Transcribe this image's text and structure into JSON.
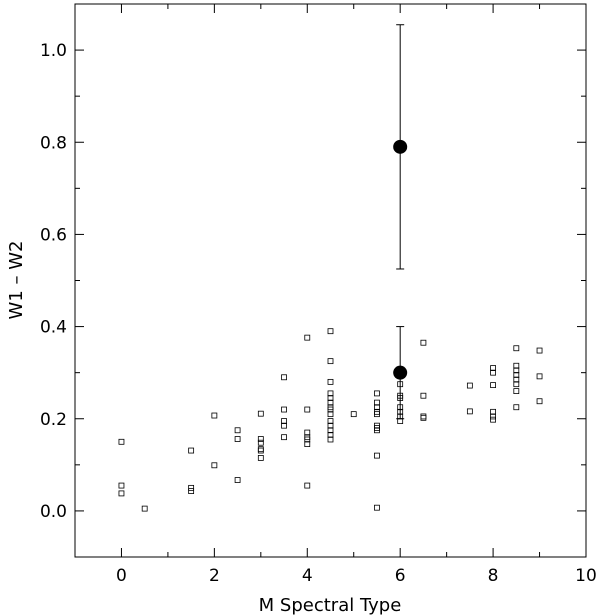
{
  "chart_data": {
    "type": "scatter",
    "title": "",
    "xlabel": "M Spectral Type",
    "ylabel": "W1 – W2",
    "xlim": [
      -1,
      10
    ],
    "ylim": [
      -0.1,
      1.1
    ],
    "grid": false,
    "x_ticks": [
      0,
      2,
      4,
      6,
      8,
      10
    ],
    "x_tick_labels": [
      "0",
      "2",
      "4",
      "6",
      "8",
      "10"
    ],
    "y_ticks": [
      0.0,
      0.2,
      0.4,
      0.6,
      0.8,
      1.0
    ],
    "y_tick_labels": [
      "0.0",
      "0.2",
      "0.4",
      "0.6",
      "0.8",
      "1.0"
    ],
    "series": [
      {
        "marker": "open-square",
        "color": "#000000",
        "points": [
          [
            0,
            0.15
          ],
          [
            0,
            0.055
          ],
          [
            0,
            0.038
          ],
          [
            0.5,
            0.005
          ],
          [
            1.5,
            0.131
          ],
          [
            1.5,
            0.05
          ],
          [
            1.5,
            0.043
          ],
          [
            2,
            0.207
          ],
          [
            2,
            0.099
          ],
          [
            2.5,
            0.175
          ],
          [
            2.5,
            0.156
          ],
          [
            2.5,
            0.067
          ],
          [
            3,
            0.211
          ],
          [
            3,
            0.156
          ],
          [
            3,
            0.148
          ],
          [
            3,
            0.134
          ],
          [
            3,
            0.131
          ],
          [
            3,
            0.115
          ],
          [
            3.5,
            0.29
          ],
          [
            3.5,
            0.22
          ],
          [
            3.5,
            0.195
          ],
          [
            3.5,
            0.185
          ],
          [
            3.5,
            0.16
          ],
          [
            4,
            0.376
          ],
          [
            4,
            0.22
          ],
          [
            4,
            0.17
          ],
          [
            4,
            0.16
          ],
          [
            4,
            0.155
          ],
          [
            4,
            0.145
          ],
          [
            4,
            0.055
          ],
          [
            4.5,
            0.39
          ],
          [
            4.5,
            0.325
          ],
          [
            4.5,
            0.28
          ],
          [
            4.5,
            0.255
          ],
          [
            4.5,
            0.245
          ],
          [
            4.5,
            0.235
          ],
          [
            4.5,
            0.225
          ],
          [
            4.5,
            0.22
          ],
          [
            4.5,
            0.21
          ],
          [
            4.5,
            0.195
          ],
          [
            4.5,
            0.185
          ],
          [
            4.5,
            0.175
          ],
          [
            4.5,
            0.165
          ],
          [
            4.5,
            0.155
          ],
          [
            5,
            0.21
          ],
          [
            5.5,
            0.255
          ],
          [
            5.5,
            0.235
          ],
          [
            5.5,
            0.225
          ],
          [
            5.5,
            0.215
          ],
          [
            5.5,
            0.21
          ],
          [
            5.5,
            0.185
          ],
          [
            5.5,
            0.18
          ],
          [
            5.5,
            0.175
          ],
          [
            5.5,
            0.12
          ],
          [
            5.5,
            0.007
          ],
          [
            6,
            0.275
          ],
          [
            6,
            0.25
          ],
          [
            6,
            0.245
          ],
          [
            6,
            0.225
          ],
          [
            6,
            0.215
          ],
          [
            6,
            0.205
          ],
          [
            6,
            0.195
          ],
          [
            6.5,
            0.365
          ],
          [
            6.5,
            0.25
          ],
          [
            6.5,
            0.205
          ],
          [
            6.5,
            0.202
          ],
          [
            7.5,
            0.272
          ],
          [
            7.5,
            0.216
          ],
          [
            8,
            0.31
          ],
          [
            8,
            0.3
          ],
          [
            8,
            0.273
          ],
          [
            8,
            0.215
          ],
          [
            8,
            0.205
          ],
          [
            8,
            0.198
          ],
          [
            8.5,
            0.353
          ],
          [
            8.5,
            0.315
          ],
          [
            8.5,
            0.305
          ],
          [
            8.5,
            0.295
          ],
          [
            8.5,
            0.285
          ],
          [
            8.5,
            0.275
          ],
          [
            8.5,
            0.26
          ],
          [
            8.5,
            0.225
          ],
          [
            9,
            0.348
          ],
          [
            9,
            0.292
          ],
          [
            9,
            0.238
          ]
        ]
      },
      {
        "marker": "filled-circle",
        "color": "#000000",
        "points": [
          {
            "x": 6,
            "y": 0.79,
            "err_low": 0.525,
            "err_high": 1.055
          },
          {
            "x": 6,
            "y": 0.3,
            "err_low": 0.2,
            "err_high": 0.4
          }
        ]
      }
    ]
  }
}
